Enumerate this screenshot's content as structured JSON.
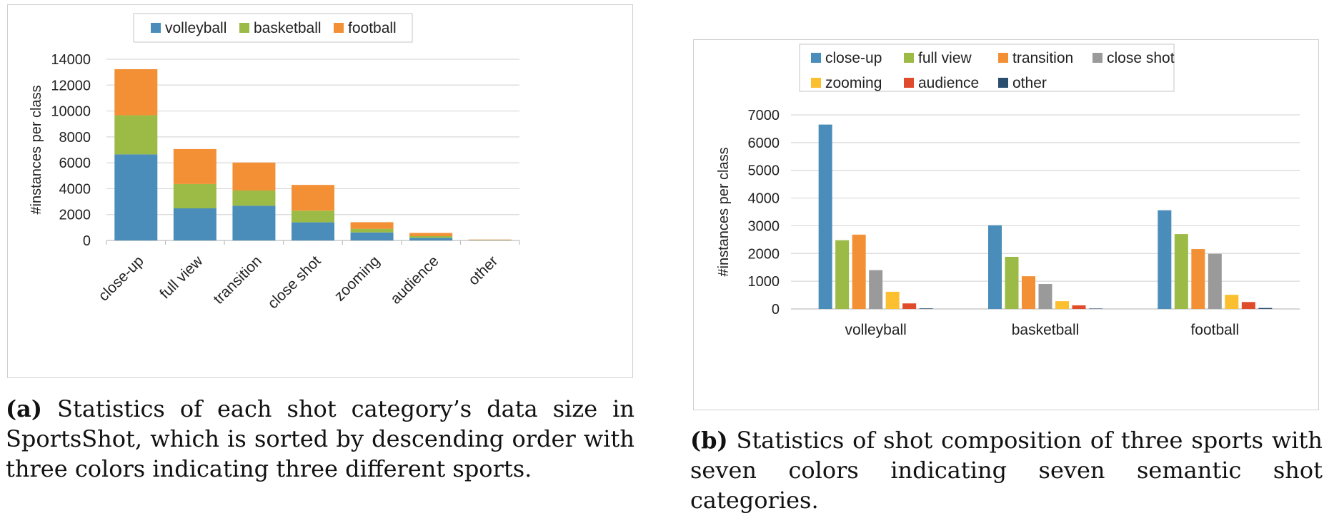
{
  "chart_data": [
    {
      "type": "bar",
      "stacked": true,
      "categories": [
        "close-up",
        "full view",
        "transition",
        "close shot",
        "zooming",
        "audience",
        "other"
      ],
      "series": [
        {
          "name": "volleyball",
          "color": "#4a8dba",
          "values": [
            6650,
            2480,
            2680,
            1400,
            620,
            200,
            20
          ]
        },
        {
          "name": "basketball",
          "color": "#9bbb46",
          "values": [
            3020,
            1880,
            1180,
            900,
            280,
            130,
            15
          ]
        },
        {
          "name": "football",
          "color": "#f39035",
          "values": [
            3560,
            2700,
            2160,
            1990,
            510,
            250,
            35
          ]
        }
      ],
      "ylabel": "#instances per class",
      "ylim": [
        0,
        14000
      ],
      "yticks": [
        0,
        2000,
        4000,
        6000,
        8000,
        10000,
        12000,
        14000
      ],
      "grid": true,
      "legend": "top"
    },
    {
      "type": "bar",
      "stacked": false,
      "categories": [
        "volleyball",
        "basketball",
        "football"
      ],
      "series": [
        {
          "name": "close-up",
          "color": "#4a8dba",
          "values": [
            6650,
            3020,
            3560
          ]
        },
        {
          "name": "full view",
          "color": "#9bbb46",
          "values": [
            2480,
            1880,
            2700
          ]
        },
        {
          "name": "transition",
          "color": "#f39035",
          "values": [
            2680,
            1180,
            2160
          ]
        },
        {
          "name": "close shot",
          "color": "#9a9a9a",
          "values": [
            1400,
            900,
            1990
          ]
        },
        {
          "name": "zooming",
          "color": "#fbbf2f",
          "values": [
            620,
            280,
            510
          ]
        },
        {
          "name": "audience",
          "color": "#e04b2c",
          "values": [
            200,
            130,
            250
          ]
        },
        {
          "name": "other",
          "color": "#2a4e6e",
          "values": [
            20,
            15,
            35
          ]
        }
      ],
      "ylabel": "#instances per class",
      "ylim": [
        0,
        7000
      ],
      "yticks": [
        0,
        1000,
        2000,
        3000,
        4000,
        5000,
        6000,
        7000
      ],
      "grid": true,
      "legend": "top"
    }
  ],
  "captions": {
    "a": {
      "label": "(a)",
      "text": "Statistics of each shot category’s data size in SportsShot, which is sorted by descending order with three colors indicating three different sports."
    },
    "b": {
      "label": "(b)",
      "text": "Statistics of shot composition of three sports with seven colors indicating seven semantic shot categories."
    }
  }
}
